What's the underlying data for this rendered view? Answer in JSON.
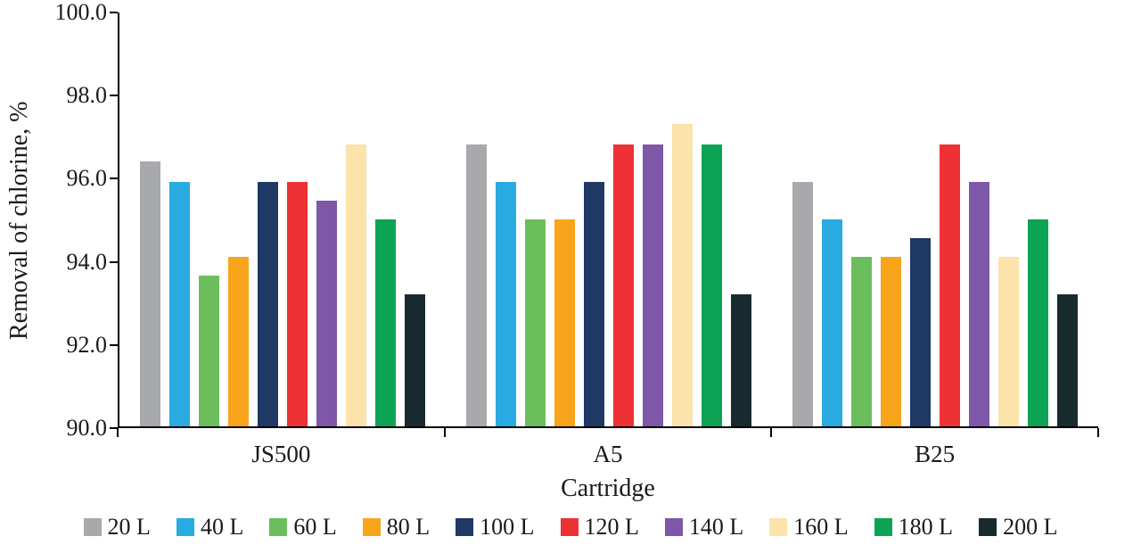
{
  "chart_data": {
    "type": "bar",
    "title": "",
    "xlabel": "Cartridge",
    "ylabel": "Removal of chlorine, %",
    "ylim": [
      90.0,
      100.0
    ],
    "ytick_step": 2.0,
    "yticks": [
      "90.0",
      "92.0",
      "94.0",
      "96.0",
      "98.0",
      "100.0"
    ],
    "categories": [
      "JS500",
      "A5",
      "B25"
    ],
    "series": [
      {
        "name": "20 L",
        "color": "#a7a9ac",
        "values": [
          96.4,
          96.8,
          95.9
        ]
      },
      {
        "name": "40 L",
        "color": "#29abe2",
        "values": [
          95.9,
          95.9,
          95.0
        ]
      },
      {
        "name": "60 L",
        "color": "#6cbe5d",
        "values": [
          93.65,
          95.0,
          94.1
        ]
      },
      {
        "name": "80 L",
        "color": "#f9a51b",
        "values": [
          94.1,
          95.0,
          94.1
        ]
      },
      {
        "name": "100 L",
        "color": "#1f3864",
        "values": [
          95.9,
          95.9,
          94.55
        ]
      },
      {
        "name": "120 L",
        "color": "#ee3135",
        "values": [
          95.9,
          96.8,
          96.8
        ]
      },
      {
        "name": "140 L",
        "color": "#7e57a8",
        "values": [
          95.45,
          96.8,
          95.9
        ]
      },
      {
        "name": "160 L",
        "color": "#fce3ac",
        "values": [
          96.8,
          97.3,
          94.1
        ]
      },
      {
        "name": "180 L",
        "color": "#0da355",
        "values": [
          95.0,
          96.8,
          95.0
        ]
      },
      {
        "name": "200 L",
        "color": "#182a2e",
        "values": [
          93.2,
          93.2,
          93.2
        ]
      }
    ],
    "legend_position": "bottom",
    "grid": false,
    "axis_color": "#000000",
    "background_color": "#ffffff"
  }
}
